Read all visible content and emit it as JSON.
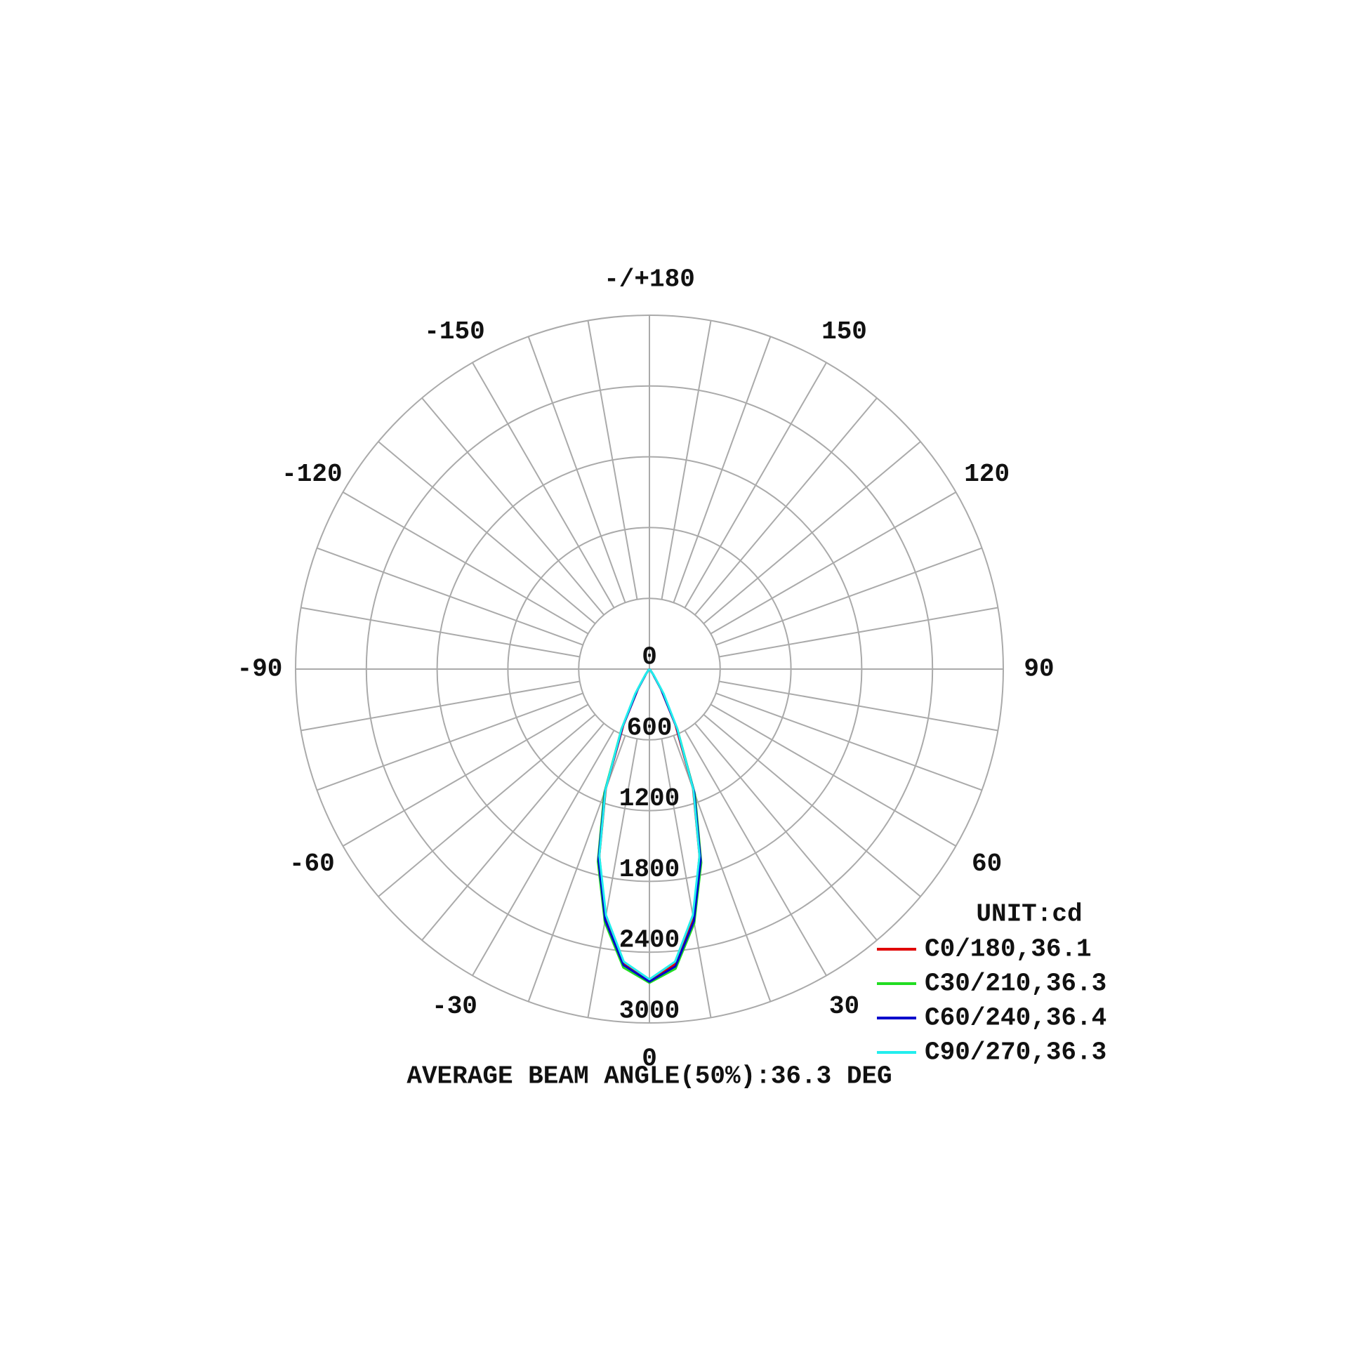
{
  "chart_data": {
    "type": "polar",
    "x": [
      -45,
      -40,
      -35,
      -30,
      -25,
      -20,
      -15,
      -10,
      -5,
      0,
      5,
      10,
      15,
      20,
      25,
      30,
      35,
      40,
      45
    ],
    "series": [
      {
        "name": "C0/180,36.1",
        "color": "#e00000",
        "values": [
          0,
          10,
          50,
          190,
          520,
          1080,
          1640,
          2140,
          2510,
          2650,
          2510,
          2140,
          1640,
          1080,
          520,
          190,
          50,
          10,
          0
        ]
      },
      {
        "name": "C30/210,36.3",
        "color": "#22dd22",
        "values": [
          0,
          15,
          60,
          210,
          560,
          1120,
          1690,
          2180,
          2540,
          2660,
          2550,
          2190,
          1700,
          1130,
          560,
          210,
          60,
          15,
          0
        ]
      },
      {
        "name": "C60/240,36.4",
        "color": "#0000cc",
        "values": [
          0,
          12,
          55,
          200,
          540,
          1100,
          1670,
          2160,
          2520,
          2650,
          2530,
          2170,
          1680,
          1110,
          545,
          200,
          55,
          12,
          0
        ]
      },
      {
        "name": "C90/270,36.3",
        "color": "#22eeee",
        "values": [
          0,
          10,
          70,
          240,
          560,
          1090,
          1640,
          2120,
          2490,
          2630,
          2490,
          2120,
          1640,
          1090,
          560,
          240,
          70,
          10,
          0
        ]
      }
    ],
    "ylim": [
      0,
      3000
    ],
    "yticks": [
      0,
      600,
      1200,
      1800,
      2400,
      3000
    ],
    "xticks": [
      0,
      30,
      60,
      90,
      120,
      150,
      {
        "value": 180,
        "label": "-/+180"
      },
      -150,
      -120,
      -90,
      -60,
      -30
    ],
    "legend_title": "UNIT:cd",
    "legend": "lower right",
    "footer": "AVERAGE BEAM ANGLE(50%):36.3 DEG",
    "grid": true
  }
}
